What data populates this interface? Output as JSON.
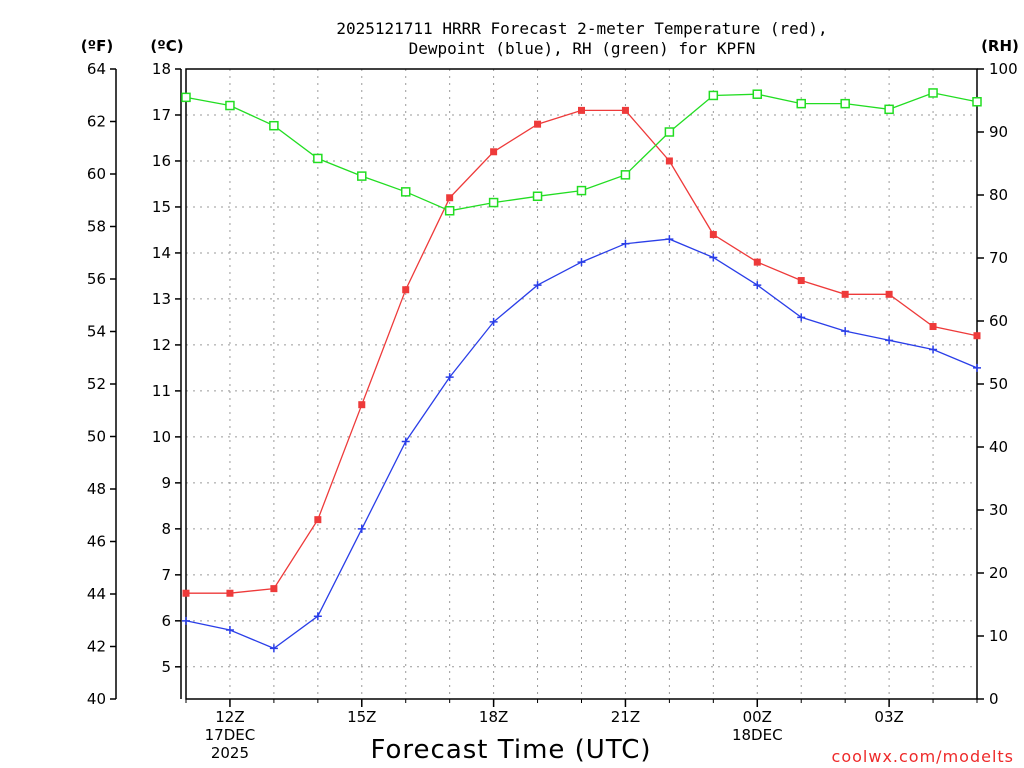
{
  "chart_data": {
    "type": "line",
    "title_lines": [
      "2025121711 HRRR Forecast 2-meter Temperature (red),",
      "Dewpoint (blue), RH (green) for KPFN"
    ],
    "xlabel": "Forecast Time (UTC)",
    "credit": "coolwx.com/modelts",
    "unit_labels": {
      "fahrenheit": "(ºF)",
      "celsius": "(ºC)",
      "rh": "(RH)"
    },
    "x_hours": [
      11,
      12,
      13,
      14,
      15,
      16,
      17,
      18,
      19,
      20,
      21,
      22,
      23,
      24,
      25,
      26,
      27,
      28,
      29
    ],
    "xlim": [
      11,
      29
    ],
    "x_ticks": [
      {
        "hour": 12,
        "lines": [
          "12Z",
          "17DEC",
          "2025"
        ]
      },
      {
        "hour": 15,
        "lines": [
          "15Z"
        ]
      },
      {
        "hour": 18,
        "lines": [
          "18Z"
        ]
      },
      {
        "hour": 21,
        "lines": [
          "21Z"
        ]
      },
      {
        "hour": 24,
        "lines": [
          "00Z",
          "18DEC"
        ]
      },
      {
        "hour": 27,
        "lines": [
          "03Z"
        ]
      }
    ],
    "celsius_axis": {
      "ylim": [
        4.3,
        18
      ],
      "ticks": [
        5,
        6,
        7,
        8,
        9,
        10,
        11,
        12,
        13,
        14,
        15,
        16,
        17,
        18
      ]
    },
    "fahrenheit_axis": {
      "ylim": [
        40,
        64
      ],
      "ticks": [
        40,
        42,
        44,
        46,
        48,
        50,
        52,
        54,
        56,
        58,
        60,
        62,
        64
      ]
    },
    "rh_axis": {
      "ylim": [
        0,
        100
      ],
      "ticks": [
        0,
        10,
        20,
        30,
        40,
        50,
        60,
        70,
        80,
        90,
        100
      ]
    },
    "series": [
      {
        "name": "Temperature",
        "units": "C",
        "axis": "celsius",
        "color": "#ee3a3a",
        "marker": "filled-square",
        "values": [
          6.6,
          6.6,
          6.7,
          8.2,
          10.7,
          13.2,
          15.2,
          16.2,
          16.8,
          17.1,
          17.1,
          16.0,
          14.4,
          13.8,
          13.4,
          13.1,
          13.1,
          12.4,
          12.2
        ]
      },
      {
        "name": "Dewpoint",
        "units": "C",
        "axis": "celsius",
        "color": "#2a3ee8",
        "marker": "plus",
        "values": [
          6.0,
          5.8,
          5.4,
          6.1,
          8.0,
          9.9,
          11.3,
          12.5,
          13.3,
          13.8,
          14.2,
          14.3,
          13.9,
          13.3,
          12.6,
          12.3,
          12.1,
          11.9,
          11.5
        ]
      },
      {
        "name": "RH",
        "units": "%",
        "axis": "rh",
        "color": "#22dd22",
        "marker": "open-square",
        "values": [
          95.5,
          94.2,
          91.0,
          85.8,
          83.0,
          80.5,
          77.5,
          78.8,
          79.8,
          80.7,
          83.2,
          90.0,
          95.8,
          96.0,
          94.5,
          94.5,
          93.6,
          96.2,
          94.8
        ]
      }
    ]
  }
}
